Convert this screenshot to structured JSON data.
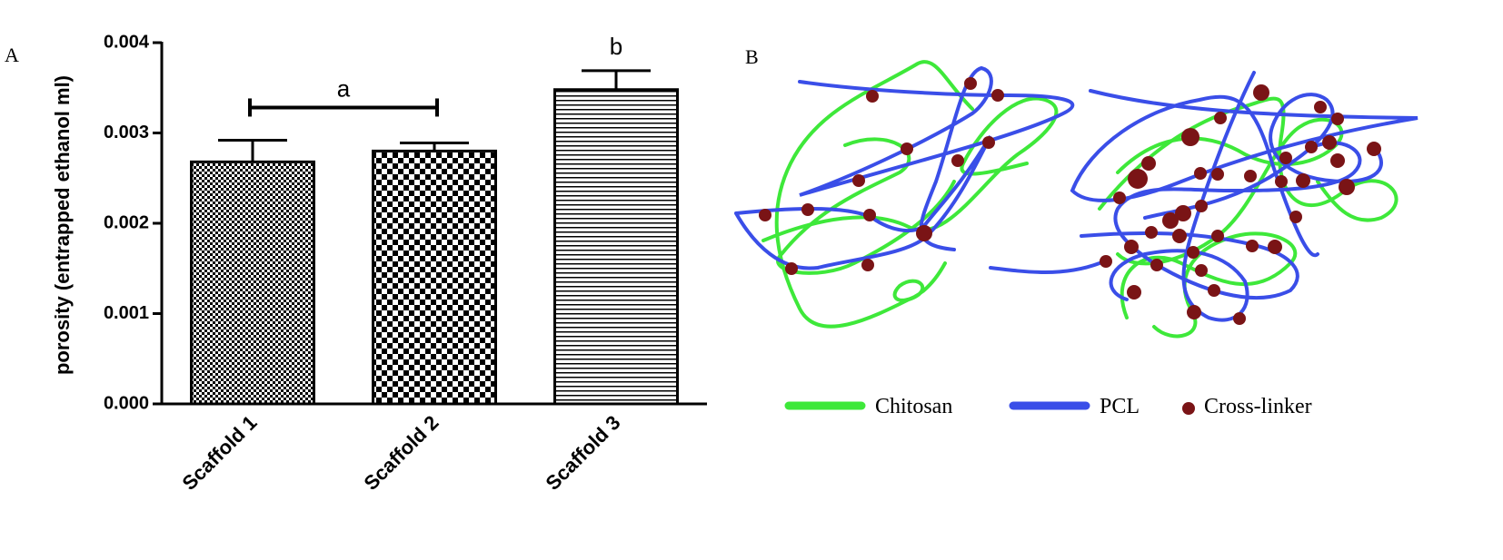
{
  "panels": [
    "A",
    "B"
  ],
  "chart_data": {
    "type": "bar",
    "ylabel": "porosity (entrapped ethanol ml)",
    "categories": [
      "Scaffold 1",
      "Scaffold 2",
      "Scaffold 3"
    ],
    "values": [
      0.00268,
      0.0028,
      0.00348
    ],
    "errors": [
      0.00024,
      9e-05,
      0.00021
    ],
    "patterns": [
      "checker-fine",
      "checker",
      "hlines"
    ],
    "ylim": [
      0,
      0.004
    ],
    "yticks": [
      {
        "value": 0,
        "label": "0.000"
      },
      {
        "value": 0.001,
        "label": "0.001"
      },
      {
        "value": 0.002,
        "label": "0.002"
      },
      {
        "value": 0.003,
        "label": "0.003"
      },
      {
        "value": 0.004,
        "label": "0.004"
      }
    ],
    "annotations": [
      "a",
      "b"
    ]
  },
  "diagram": {
    "legend": [
      {
        "name": "Chitosan",
        "color": "#3ee83a"
      },
      {
        "name": "PCL",
        "color": "#3a4ee8"
      },
      {
        "name": "Cross-linker",
        "color": "#7a1416"
      }
    ]
  }
}
